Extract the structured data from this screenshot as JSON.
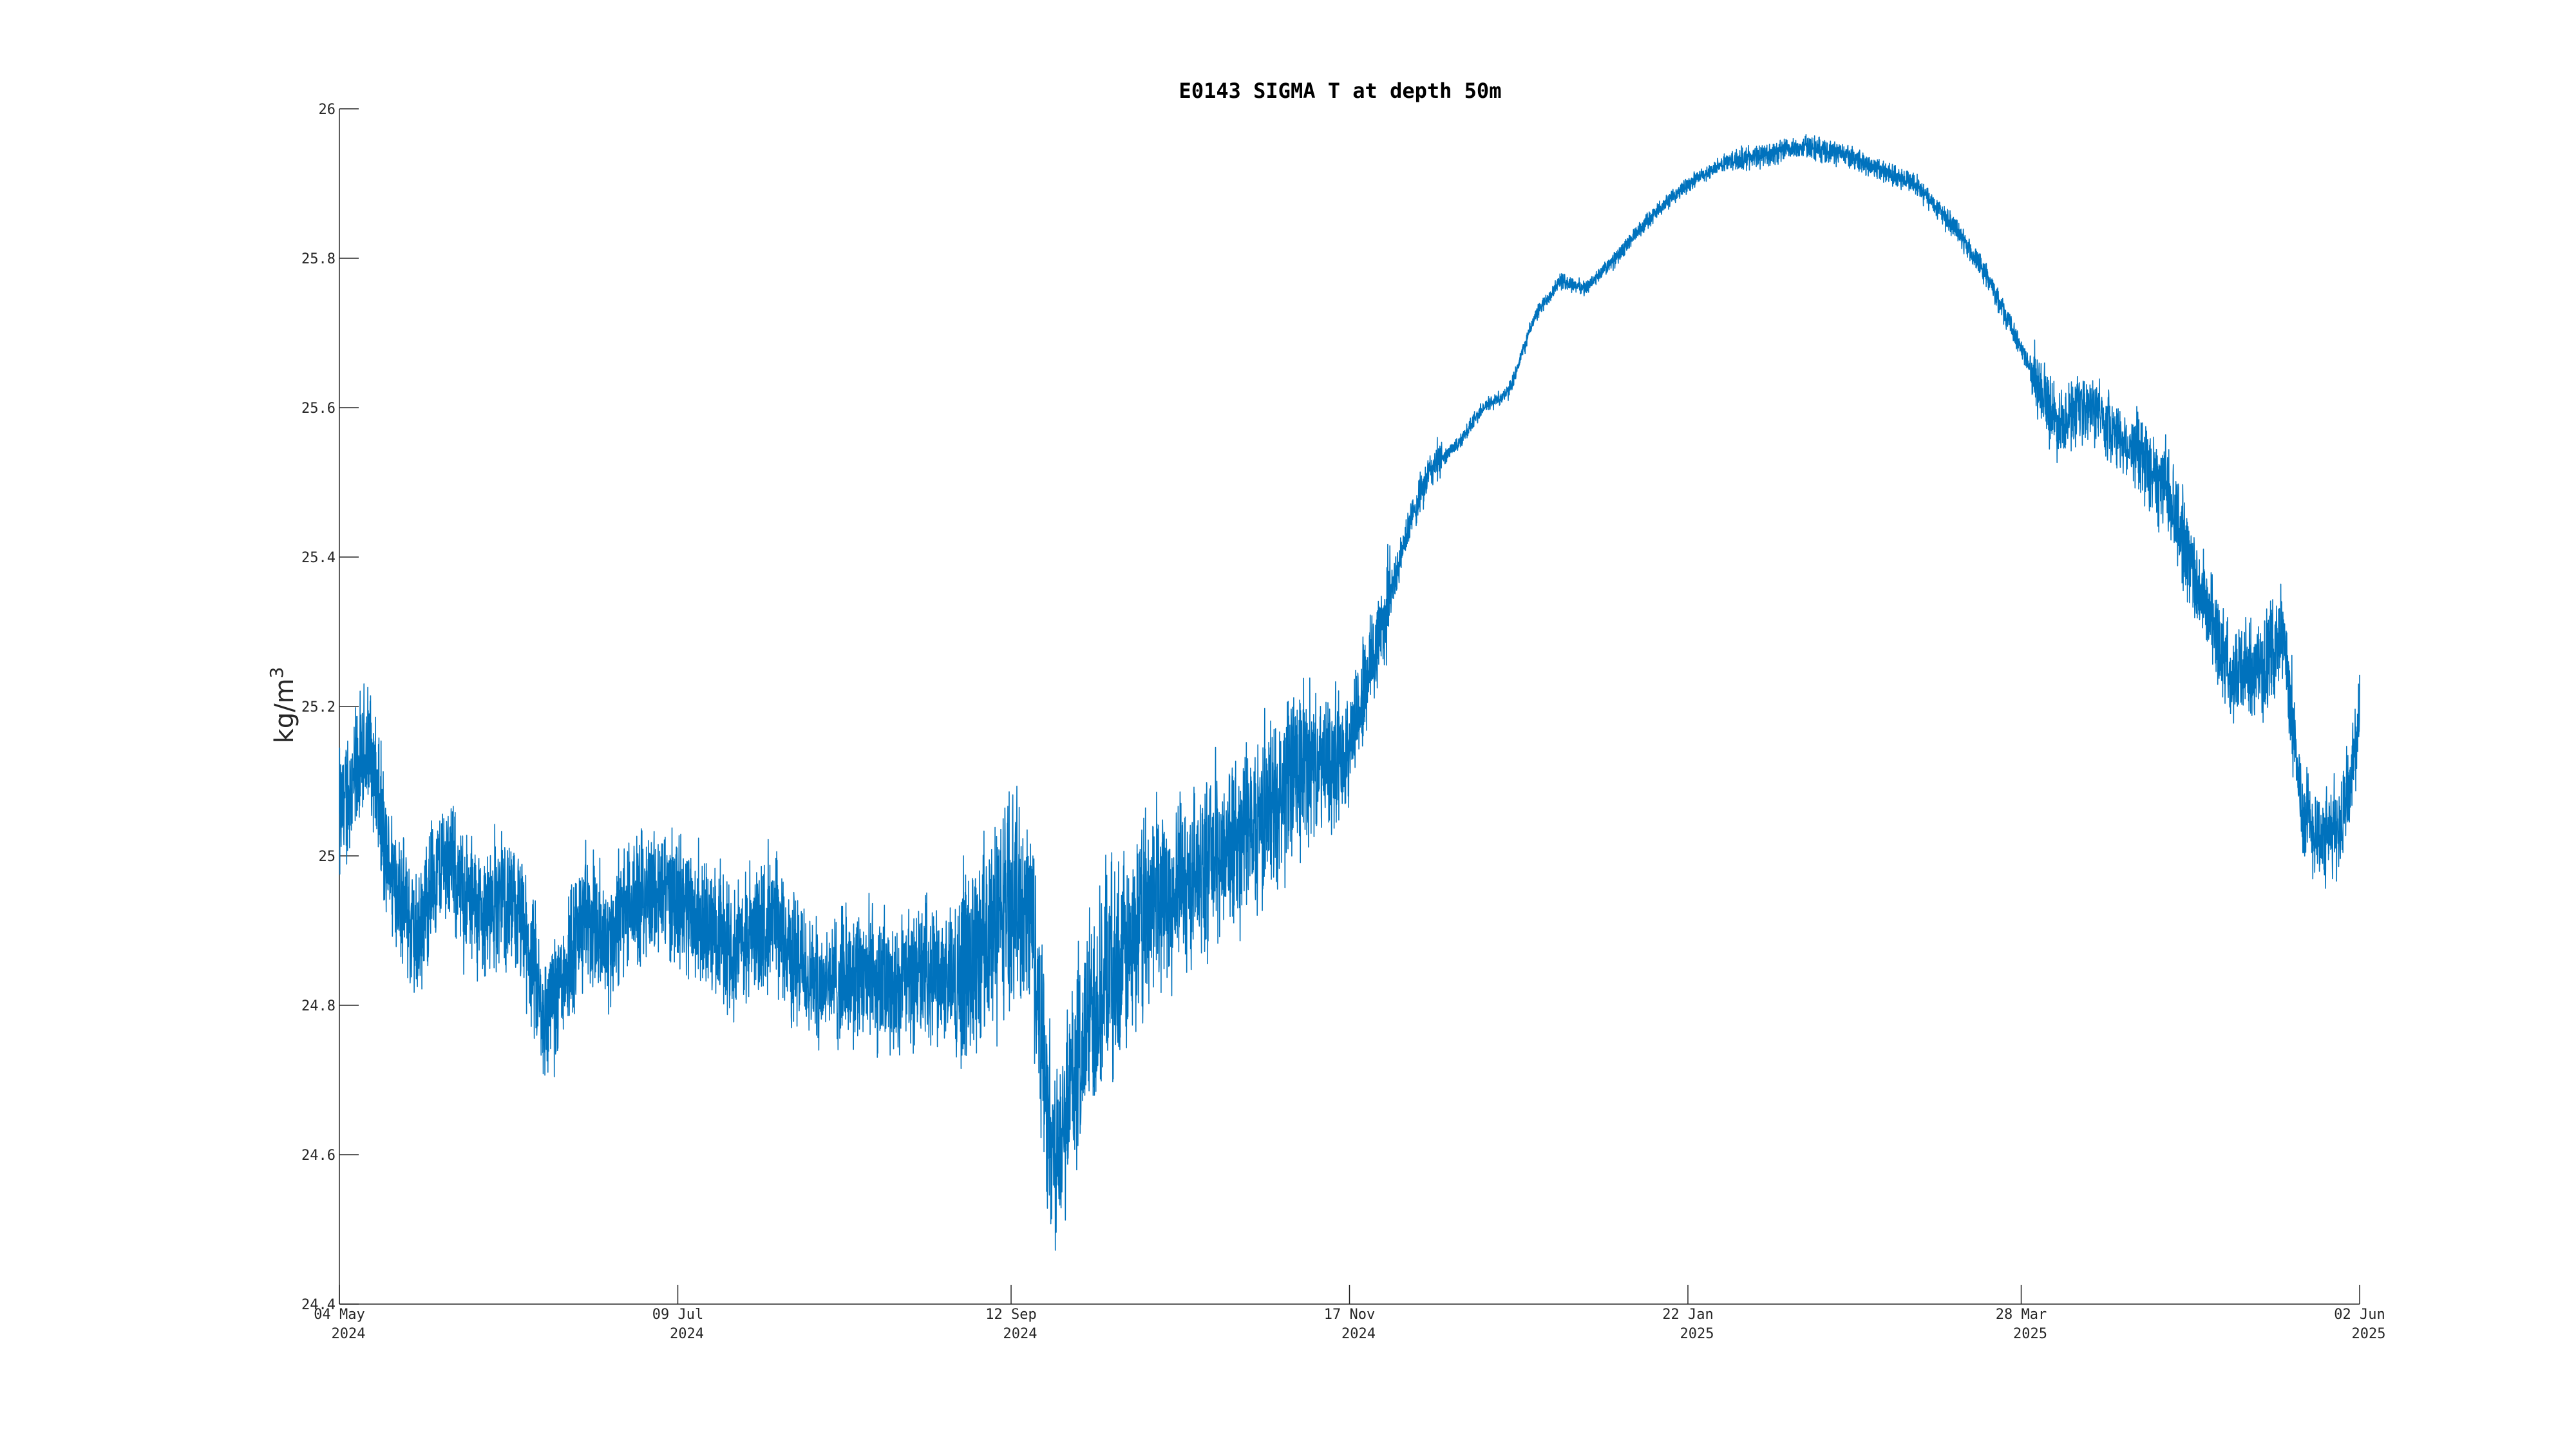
{
  "chart_data": {
    "type": "line",
    "title": "E0143 SIGMA T at depth 50m",
    "ylabel": "kg/m",
    "ylabel_superscript": "3",
    "xlabel": "",
    "ylim": [
      24.4,
      26
    ],
    "yticks": [
      "24.4",
      "24.6",
      "24.8",
      "25",
      "25.2",
      "25.4",
      "25.6",
      "25.8",
      "26"
    ],
    "xlim": [
      "2024-05-04",
      "2025-06-02"
    ],
    "xticks": [
      {
        "date": "2024-05-04",
        "line1": "04 May",
        "line2": "2024"
      },
      {
        "date": "2024-07-09",
        "line1": "09 Jul",
        "line2": "2024"
      },
      {
        "date": "2024-09-12",
        "line1": "12 Sep",
        "line2": "2024"
      },
      {
        "date": "2024-11-17",
        "line1": "17 Nov",
        "line2": "2024"
      },
      {
        "date": "2025-01-22",
        "line1": "22 Jan",
        "line2": "2025"
      },
      {
        "date": "2025-03-28",
        "line1": "28 Mar",
        "line2": "2025"
      },
      {
        "date": "2025-06-02",
        "line1": "02 Jun",
        "line2": "2025"
      }
    ],
    "grid": false,
    "line_color": "#0072BD",
    "series": [
      {
        "x": [
          "2024-05-04",
          "2024-05-07",
          "2024-05-10",
          "2024-05-13",
          "2024-05-16",
          "2024-05-19",
          "2024-05-22",
          "2024-05-25",
          "2024-05-28",
          "2024-06-01",
          "2024-06-05",
          "2024-06-09",
          "2024-06-13",
          "2024-06-17",
          "2024-06-21",
          "2024-06-25",
          "2024-06-29",
          "2024-07-03",
          "2024-07-09",
          "2024-07-15",
          "2024-07-21",
          "2024-07-27",
          "2024-08-02",
          "2024-08-08",
          "2024-08-14",
          "2024-08-20",
          "2024-08-26",
          "2024-09-01",
          "2024-09-06",
          "2024-09-12",
          "2024-09-16",
          "2024-09-20",
          "2024-09-24",
          "2024-09-28",
          "2024-10-02",
          "2024-10-06",
          "2024-10-10",
          "2024-10-14",
          "2024-10-18",
          "2024-10-22",
          "2024-10-26",
          "2024-10-30",
          "2024-11-03",
          "2024-11-08",
          "2024-11-13",
          "2024-11-17",
          "2024-11-21",
          "2024-11-25",
          "2024-11-29",
          "2024-12-03",
          "2024-12-08",
          "2024-12-13",
          "2024-12-18",
          "2024-12-23",
          "2024-12-28",
          "2025-01-02",
          "2025-01-08",
          "2025-01-14",
          "2025-01-22",
          "2025-01-30",
          "2025-02-07",
          "2025-02-14",
          "2025-02-21",
          "2025-02-28",
          "2025-03-07",
          "2025-03-14",
          "2025-03-21",
          "2025-03-28",
          "2025-04-04",
          "2025-04-11",
          "2025-04-18",
          "2025-04-25",
          "2025-05-02",
          "2025-05-08",
          "2025-05-14",
          "2025-05-18",
          "2025-05-22",
          "2025-05-26",
          "2025-05-30",
          "2025-06-02"
        ],
        "y": [
          25.05,
          25.1,
          25.15,
          25.0,
          24.95,
          24.88,
          24.97,
          25.0,
          24.95,
          24.92,
          24.95,
          24.9,
          24.78,
          24.85,
          24.92,
          24.88,
          24.93,
          24.95,
          24.95,
          24.9,
          24.88,
          24.92,
          24.85,
          24.83,
          24.85,
          24.82,
          24.85,
          24.83,
          24.88,
          24.95,
          24.92,
          24.6,
          24.7,
          24.8,
          24.85,
          24.88,
          24.95,
          24.95,
          24.98,
          25.0,
          25.02,
          25.05,
          25.08,
          25.12,
          25.12,
          25.15,
          25.25,
          25.35,
          25.45,
          25.52,
          25.55,
          25.6,
          25.62,
          25.72,
          25.77,
          25.76,
          25.8,
          25.85,
          25.9,
          25.93,
          25.94,
          25.95,
          25.94,
          25.92,
          25.9,
          25.85,
          25.78,
          25.68,
          25.58,
          25.6,
          25.55,
          25.5,
          25.35,
          25.25,
          25.25,
          25.3,
          25.05,
          25.02,
          25.05,
          25.18
        ]
      }
    ]
  }
}
